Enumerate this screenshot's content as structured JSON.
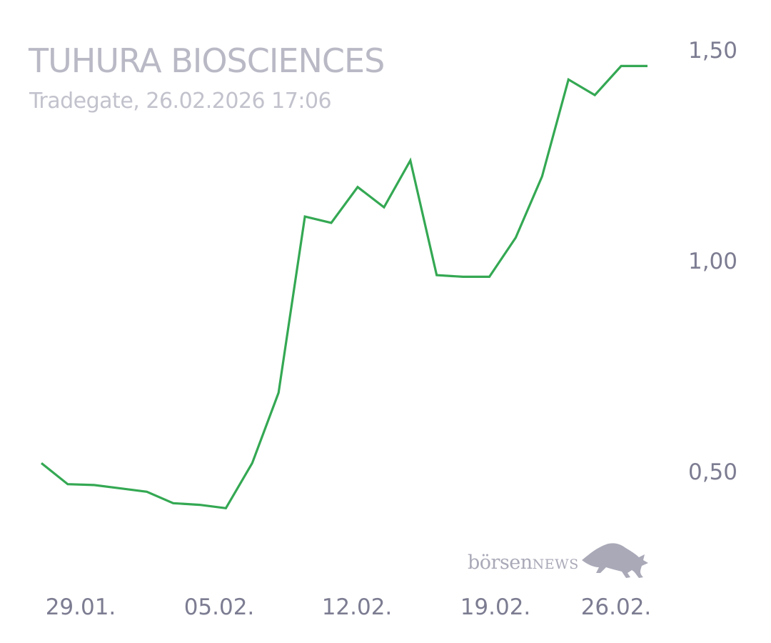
{
  "header": {
    "title": "TUHURA BIOSCIENCES",
    "subtitle": "Tradegate, 26.02.2026 17:06"
  },
  "logo": {
    "text_main": "börsen",
    "text_news": "NEWS",
    "icon": "bull-icon"
  },
  "colors": {
    "line": "#34a853",
    "axis_text": "#7c7c92",
    "title": "#b9b9c6",
    "logo": "#a9a9b8"
  },
  "chart_data": {
    "type": "line",
    "title": "TUHURA BIOSCIENCES",
    "subtitle": "Tradegate, 26.02.2026 17:06",
    "ylim": [
      0.25,
      1.58
    ],
    "y_ticks": [
      {
        "value": 1.5,
        "label": "1,50"
      },
      {
        "value": 1.0,
        "label": "1,00"
      },
      {
        "value": 0.5,
        "label": "0,50"
      }
    ],
    "x_ticks": [
      {
        "x": "2026-01-29",
        "label": "29.01."
      },
      {
        "x": "2026-02-05",
        "label": "05.02."
      },
      {
        "x": "2026-02-12",
        "label": "12.02."
      },
      {
        "x": "2026-02-19",
        "label": "19.02."
      },
      {
        "x": "2026-02-26",
        "label": "26.02."
      }
    ],
    "grid": false,
    "series": [
      {
        "x": [
          "2026-01-28",
          "2026-01-29",
          "2026-01-30",
          "2026-01-31",
          "2026-02-02",
          "2026-02-03",
          "2026-02-04",
          "2026-02-05",
          "2026-02-06",
          "2026-02-09",
          "2026-02-10",
          "2026-02-11",
          "2026-02-12",
          "2026-02-13",
          "2026-02-16",
          "2026-02-17",
          "2026-02-18",
          "2026-02-19",
          "2026-02-20",
          "2026-02-23",
          "2026-02-24",
          "2026-02-25",
          "2026-02-26",
          "2026-02-27"
        ],
        "values": [
          0.52,
          0.47,
          0.468,
          0.46,
          0.452,
          0.425,
          0.421,
          0.413,
          0.52,
          0.687,
          1.105,
          1.09,
          1.175,
          1.127,
          1.238,
          0.966,
          0.962,
          0.962,
          1.055,
          1.2,
          1.43,
          1.393,
          1.462,
          1.462
        ]
      }
    ]
  }
}
